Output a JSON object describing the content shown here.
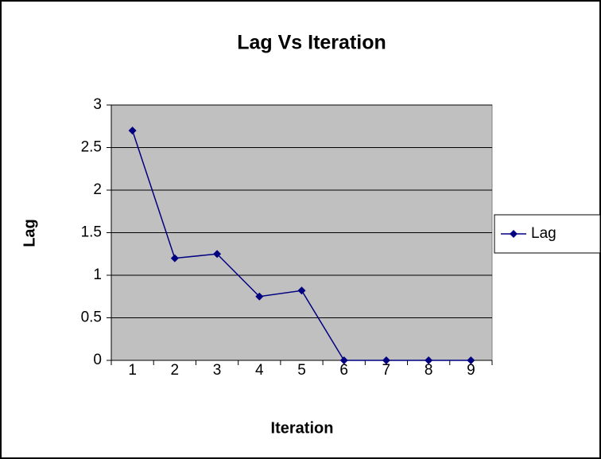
{
  "chart_data": {
    "type": "line",
    "title": "Lag Vs Iteration",
    "x_label": "Iteration",
    "y_label": "Lag",
    "categories": [
      "1",
      "2",
      "3",
      "4",
      "5",
      "6",
      "7",
      "8",
      "9"
    ],
    "series": [
      {
        "name": "Lag",
        "color": "#000080",
        "values": [
          2.7,
          1.2,
          1.25,
          0.75,
          0.82,
          0,
          0,
          0,
          0
        ]
      }
    ],
    "ylim": [
      0,
      3
    ],
    "yticks": [
      0,
      0.5,
      1,
      1.5,
      2,
      2.5,
      3
    ],
    "grid": true,
    "legend": "right",
    "plot_background": "#c0c0c0"
  }
}
